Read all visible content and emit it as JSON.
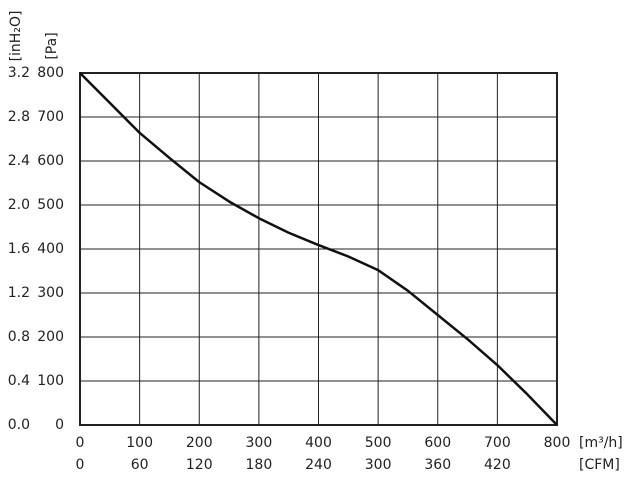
{
  "chart_data": {
    "type": "line",
    "x": [
      0,
      50,
      100,
      150,
      200,
      250,
      300,
      350,
      400,
      450,
      500,
      550,
      600,
      650,
      700,
      750,
      800
    ],
    "values": [
      800,
      732,
      664,
      607,
      552,
      508,
      470,
      437,
      409,
      383,
      352,
      305,
      250,
      195,
      136,
      70,
      0
    ],
    "color": "#111111",
    "xlim": [
      0,
      800
    ],
    "xticks": [
      0,
      100,
      200,
      300,
      400,
      500,
      600,
      700,
      800
    ],
    "ylim": [
      0,
      800
    ],
    "yticks": [
      0,
      100,
      200,
      300,
      400,
      500,
      600,
      700,
      800
    ],
    "x2lim": [
      0,
      480
    ],
    "x2ticks": [
      0,
      60,
      120,
      180,
      240,
      300,
      360,
      420
    ],
    "y2lim": [
      0,
      3.2
    ],
    "y2ticks": [
      {
        "value": 0,
        "label": "0.0"
      },
      0.4,
      0.8,
      1.2,
      1.6,
      {
        "value": 2,
        "label": "2.0"
      },
      2.4,
      2.8,
      3.2
    ],
    "xlabel": "[m³/h]",
    "x2label": "[CFM]",
    "ylabel": "[Pa]",
    "y2label": "[inH₂O]",
    "grid": true
  }
}
